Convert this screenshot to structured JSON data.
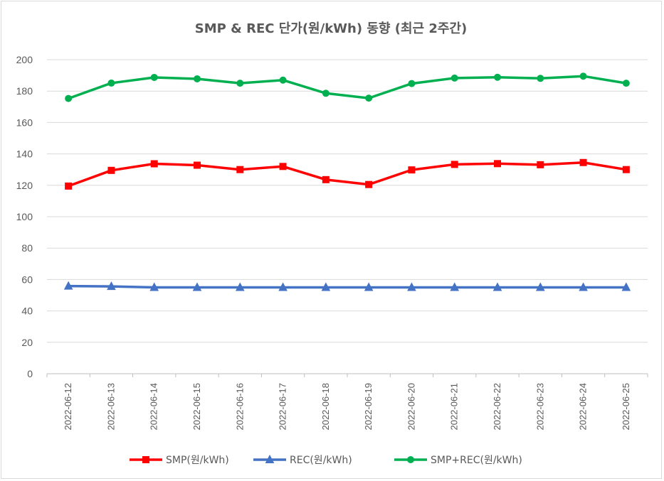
{
  "chart_data": {
    "type": "line",
    "title": "SMP & REC 단가(원/kWh) 동향 (최근 2주간)",
    "xlabel": "",
    "ylabel": "",
    "ylim": [
      0,
      200
    ],
    "yticks": [
      0,
      20,
      40,
      60,
      80,
      100,
      120,
      140,
      160,
      180,
      200
    ],
    "grid": true,
    "legend_position": "bottom",
    "categories": [
      "2022-06-12",
      "2022-06-13",
      "2022-06-14",
      "2022-06-15",
      "2022-06-16",
      "2022-06-17",
      "2022-06-18",
      "2022-06-19",
      "2022-06-20",
      "2022-06-21",
      "2022-06-22",
      "2022-06-23",
      "2022-06-24",
      "2022-06-25"
    ],
    "series": [
      {
        "name": "SMP(원/kWh)",
        "color": "#ff0000",
        "marker": "square",
        "values": [
          119.5,
          129.5,
          133.7,
          132.8,
          130.0,
          132.0,
          123.6,
          120.5,
          129.8,
          133.3,
          133.8,
          133.1,
          134.5,
          130.0
        ]
      },
      {
        "name": "REC(원/kWh)",
        "color": "#4472c4",
        "marker": "triangle",
        "values": [
          55.8,
          55.6,
          55.0,
          55.0,
          55.0,
          55.0,
          55.0,
          55.0,
          55.0,
          55.0,
          55.0,
          55.0,
          55.0,
          55.0
        ]
      },
      {
        "name": "SMP+REC(원/kWh)",
        "color": "#00b050",
        "marker": "circle",
        "values": [
          175.3,
          185.1,
          188.7,
          187.8,
          185.0,
          187.0,
          178.6,
          175.5,
          184.8,
          188.3,
          188.8,
          188.1,
          189.5,
          185.0
        ]
      }
    ]
  }
}
